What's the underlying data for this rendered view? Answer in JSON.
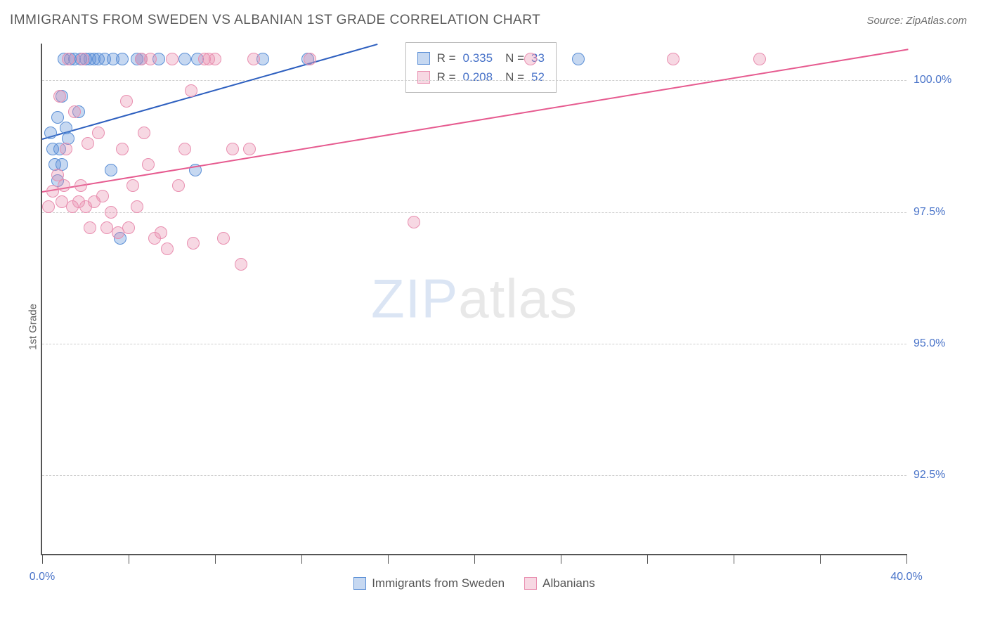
{
  "header": {
    "title": "IMMIGRANTS FROM SWEDEN VS ALBANIAN 1ST GRADE CORRELATION CHART",
    "source_label": "Source: ZipAtlas.com"
  },
  "ylabel": "1st Grade",
  "watermark": {
    "part1": "ZIP",
    "part2": "atlas"
  },
  "chart": {
    "type": "scatter",
    "background_color": "#ffffff",
    "grid_color": "#cfcfcf",
    "axis_color": "#555555",
    "xlim": [
      0,
      40
    ],
    "ylim": [
      91.0,
      100.7
    ],
    "xticks": [
      0,
      4,
      8,
      12,
      16,
      20,
      24,
      28,
      32,
      36,
      40
    ],
    "xtick_labels": {
      "0": "0.0%",
      "40": "40.0%"
    },
    "yticks": [
      92.5,
      95.0,
      97.5,
      100.0
    ],
    "ytick_labels": [
      "92.5%",
      "95.0%",
      "97.5%",
      "100.0%"
    ],
    "marker_radius": 9,
    "marker_border_width": 1.2,
    "marker_fill_opacity": 0.35,
    "line_width": 2,
    "series": [
      {
        "name": "Immigrants from Sweden",
        "color": "#5b8fd6",
        "line_color": "#2d5fbf",
        "R": "0.335",
        "N": "33",
        "trend": {
          "x1": 0,
          "y1": 98.9,
          "x2": 15.5,
          "y2": 100.7
        },
        "points": [
          [
            0.4,
            99.0
          ],
          [
            0.5,
            98.7
          ],
          [
            0.6,
            98.4
          ],
          [
            0.7,
            98.1
          ],
          [
            0.7,
            99.3
          ],
          [
            0.8,
            98.7
          ],
          [
            0.9,
            99.7
          ],
          [
            0.9,
            98.4
          ],
          [
            1.0,
            100.4
          ],
          [
            1.1,
            99.1
          ],
          [
            1.2,
            98.9
          ],
          [
            1.3,
            100.4
          ],
          [
            1.5,
            100.4
          ],
          [
            1.7,
            99.4
          ],
          [
            1.8,
            100.4
          ],
          [
            2.0,
            100.4
          ],
          [
            2.2,
            100.4
          ],
          [
            2.4,
            100.4
          ],
          [
            2.6,
            100.4
          ],
          [
            2.9,
            100.4
          ],
          [
            3.2,
            98.3
          ],
          [
            3.3,
            100.4
          ],
          [
            3.6,
            97.0
          ],
          [
            3.7,
            100.4
          ],
          [
            4.4,
            100.4
          ],
          [
            4.6,
            100.4
          ],
          [
            5.4,
            100.4
          ],
          [
            6.6,
            100.4
          ],
          [
            7.1,
            98.3
          ],
          [
            7.2,
            100.4
          ],
          [
            10.2,
            100.4
          ],
          [
            12.3,
            100.4
          ],
          [
            24.8,
            100.4
          ]
        ]
      },
      {
        "name": "Albanians",
        "color": "#e98fb0",
        "line_color": "#e65a8f",
        "R": "0.208",
        "N": "52",
        "trend": {
          "x1": 0,
          "y1": 97.9,
          "x2": 40,
          "y2": 100.6
        },
        "points": [
          [
            0.3,
            97.6
          ],
          [
            0.5,
            97.9
          ],
          [
            0.7,
            98.2
          ],
          [
            0.8,
            99.7
          ],
          [
            0.9,
            97.7
          ],
          [
            1.0,
            98.0
          ],
          [
            1.1,
            98.7
          ],
          [
            1.2,
            100.4
          ],
          [
            1.4,
            97.6
          ],
          [
            1.5,
            99.4
          ],
          [
            1.7,
            97.7
          ],
          [
            1.8,
            98.0
          ],
          [
            1.9,
            100.4
          ],
          [
            2.0,
            97.6
          ],
          [
            2.1,
            98.8
          ],
          [
            2.2,
            97.2
          ],
          [
            2.4,
            97.7
          ],
          [
            2.6,
            99.0
          ],
          [
            2.8,
            97.8
          ],
          [
            3.0,
            97.2
          ],
          [
            3.2,
            97.5
          ],
          [
            3.5,
            97.1
          ],
          [
            3.7,
            98.7
          ],
          [
            3.9,
            99.6
          ],
          [
            4.0,
            97.2
          ],
          [
            4.2,
            98.0
          ],
          [
            4.4,
            97.6
          ],
          [
            4.6,
            100.4
          ],
          [
            4.7,
            99.0
          ],
          [
            4.9,
            98.4
          ],
          [
            5.0,
            100.4
          ],
          [
            5.2,
            97.0
          ],
          [
            5.5,
            97.1
          ],
          [
            5.8,
            96.8
          ],
          [
            6.0,
            100.4
          ],
          [
            6.3,
            98.0
          ],
          [
            6.6,
            98.7
          ],
          [
            6.9,
            99.8
          ],
          [
            7.0,
            96.9
          ],
          [
            7.5,
            100.4
          ],
          [
            7.7,
            100.4
          ],
          [
            8.0,
            100.4
          ],
          [
            8.4,
            97.0
          ],
          [
            8.8,
            98.7
          ],
          [
            9.2,
            96.5
          ],
          [
            9.6,
            98.7
          ],
          [
            9.8,
            100.4
          ],
          [
            12.4,
            100.4
          ],
          [
            17.2,
            97.3
          ],
          [
            22.6,
            100.4
          ],
          [
            29.2,
            100.4
          ],
          [
            33.2,
            100.4
          ]
        ]
      }
    ]
  },
  "legend_box": {
    "r_label": "R =",
    "n_label": "N ="
  },
  "bottom_legend": {
    "items": [
      "Immigrants from Sweden",
      "Albanians"
    ]
  }
}
